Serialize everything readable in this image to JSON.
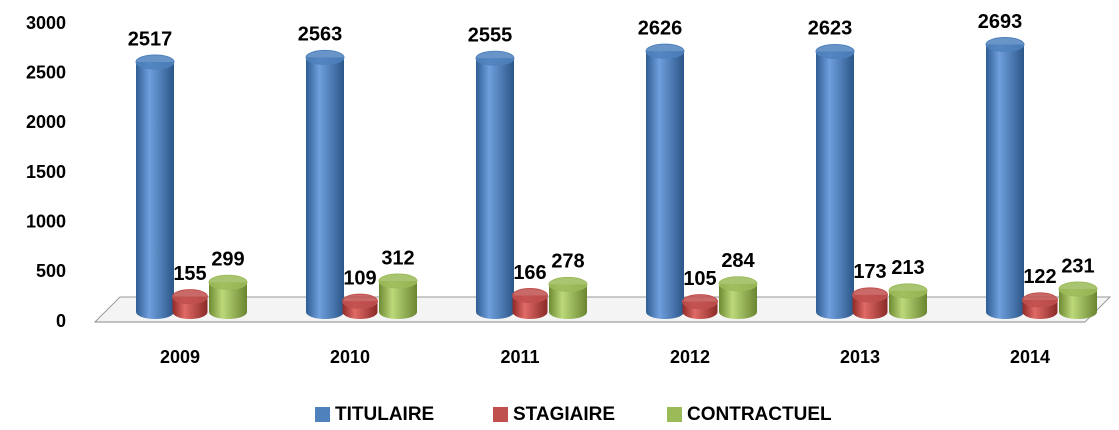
{
  "chart_data": {
    "type": "bar",
    "categories": [
      "2009",
      "2010",
      "2011",
      "2012",
      "2013",
      "2014"
    ],
    "series": [
      {
        "name": "TITULAIRE",
        "color": "#4f81bd",
        "values": [
          2517,
          2563,
          2555,
          2626,
          2623,
          2693
        ]
      },
      {
        "name": "STAGIAIRE",
        "color": "#c0504d",
        "values": [
          155,
          109,
          166,
          105,
          173,
          122
        ]
      },
      {
        "name": "CONTRACTUEL",
        "color": "#9bbb59",
        "values": [
          299,
          312,
          278,
          284,
          213,
          231
        ]
      }
    ],
    "ylim": [
      0,
      3000
    ],
    "yticks": [
      0,
      500,
      1000,
      1500,
      2000,
      2500,
      3000
    ],
    "legend": "bottom"
  }
}
